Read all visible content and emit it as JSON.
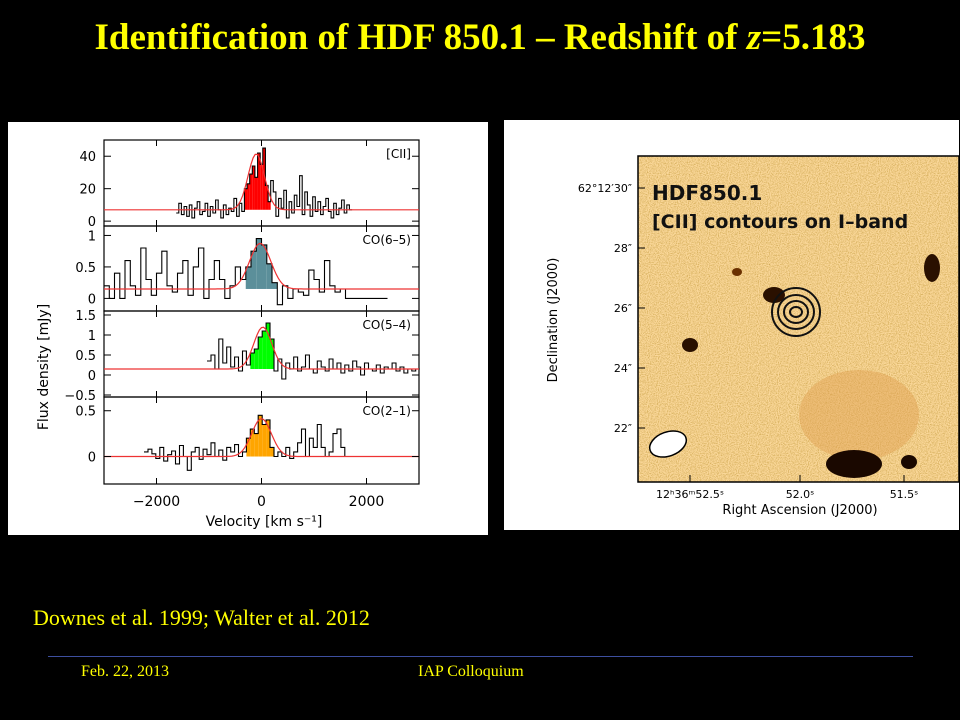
{
  "slide": {
    "title_prefix": "Identification of  HDF 850.1 – Redshift of ",
    "title_z": "z",
    "title_suffix": "=5.183",
    "citation": "Downes et al. 1999; Walter et al. 2012",
    "footer_date": "Feb. 22, 2013",
    "footer_event": "IAP Colloquium"
  },
  "chart_data": [
    {
      "type": "line",
      "xlabel": "Velocity [km s⁻¹]",
      "ylabel": "Flux density [mJy]",
      "xlim": [
        -3000,
        3000
      ],
      "x_ticks": [
        -2000,
        0,
        2000
      ],
      "x_tick_labels": [
        "−2000",
        "0",
        "2000"
      ],
      "panels": [
        {
          "name": "[CII]",
          "ylim": [
            -3,
            50
          ],
          "y_ticks": [
            0,
            20,
            40
          ],
          "y_tick_labels": [
            "0",
            "20",
            "40"
          ],
          "baseline": 7,
          "fill_color": "#ff0000",
          "fill_range": [
            -350,
            150
          ],
          "x": [
            -1600,
            -1550,
            -1500,
            -1450,
            -1400,
            -1350,
            -1300,
            -1250,
            -1200,
            -1150,
            -1100,
            -1050,
            -1000,
            -950,
            -900,
            -850,
            -800,
            -750,
            -700,
            -650,
            -600,
            -550,
            -500,
            -450,
            -400,
            -350,
            -300,
            -250,
            -200,
            -150,
            -100,
            -50,
            0,
            50,
            100,
            150,
            200,
            250,
            300,
            350,
            400,
            450,
            500,
            550,
            600,
            650,
            700,
            750,
            800,
            850,
            900,
            950,
            1000,
            1050,
            1100,
            1150,
            1200,
            1250,
            1300,
            1350,
            1400,
            1450,
            1500,
            1550,
            1600,
            1650,
            1700
          ],
          "values": [
            5,
            11,
            4,
            9,
            3,
            10,
            2,
            8,
            12,
            4,
            6,
            11,
            3,
            9,
            5,
            13,
            7,
            2,
            10,
            4,
            8,
            6,
            14,
            3,
            11,
            6,
            20,
            23,
            29,
            34,
            27,
            42,
            35,
            45,
            22,
            12,
            25,
            18,
            3,
            14,
            8,
            19,
            2,
            12,
            5,
            16,
            9,
            28,
            4,
            18,
            10,
            3,
            15,
            6,
            12,
            4,
            9,
            14,
            6,
            2,
            11,
            4,
            8,
            13,
            5,
            10,
            7
          ]
        },
        {
          "name": "CO(6–5)",
          "ylim": [
            -0.2,
            1.15
          ],
          "y_ticks": [
            0,
            0.5,
            1
          ],
          "y_tick_labels": [
            "0",
            "0.5",
            "1"
          ],
          "baseline": 0.15,
          "fill_color": "#5b8f9a",
          "fill_range": [
            -350,
            300
          ],
          "x": [
            -2950,
            -2850,
            -2750,
            -2650,
            -2550,
            -2450,
            -2350,
            -2250,
            -2150,
            -2050,
            -1950,
            -1850,
            -1750,
            -1650,
            -1550,
            -1450,
            -1350,
            -1250,
            -1150,
            -1050,
            -950,
            -850,
            -750,
            -650,
            -550,
            -450,
            -350,
            -250,
            -150,
            -50,
            50,
            150,
            250,
            350,
            450,
            550,
            650,
            750,
            850,
            950,
            1050,
            1150,
            1250,
            1350,
            1450,
            1550,
            1650,
            1750,
            1850,
            1950,
            2050,
            2150,
            2250,
            2350
          ],
          "values": [
            0.2,
            0.0,
            0.4,
            0.0,
            0.6,
            0.2,
            0.05,
            0.8,
            0.3,
            0.05,
            0.4,
            0.75,
            0.2,
            0.1,
            0.4,
            0.6,
            0.05,
            0.5,
            0.8,
            0.0,
            0.3,
            0.6,
            0.3,
            0.0,
            0.2,
            0.5,
            0.3,
            0.5,
            0.75,
            0.95,
            0.85,
            0.55,
            0.25,
            -0.1,
            0.2,
            0.0,
            0.15,
            0.1,
            0.05,
            0.45,
            0.3,
            0.1,
            0.6,
            0.2,
            0.1,
            0.15,
            0.0,
            0.0,
            0.0,
            0.0,
            0.0,
            0.0,
            0.0,
            0.0
          ]
        },
        {
          "name": "CO(5–4)",
          "ylim": [
            -0.55,
            1.6
          ],
          "y_ticks": [
            -0.5,
            0,
            0.5,
            1,
            1.5
          ],
          "y_tick_labels": [
            "−0.5",
            "0",
            "0.5",
            "1",
            "1.5"
          ],
          "baseline": 0.15,
          "fill_color": "#00ff00",
          "fill_range": [
            -250,
            300
          ],
          "x": [
            -1000,
            -925,
            -850,
            -775,
            -700,
            -625,
            -550,
            -475,
            -400,
            -325,
            -250,
            -175,
            -100,
            -25,
            50,
            125,
            200,
            275,
            350,
            425,
            500,
            575,
            650,
            725,
            800,
            875,
            950,
            1025,
            1100,
            1175,
            1250,
            1325,
            1400,
            1475,
            1550,
            1625,
            1700,
            1775,
            1850,
            1925,
            2000,
            2075,
            2150,
            2225,
            2300,
            2375,
            2450,
            2525,
            2600,
            2675,
            2750,
            2825,
            2900,
            2975
          ],
          "values": [
            0.35,
            0.5,
            0.15,
            0.9,
            0.3,
            0.7,
            0.2,
            0.45,
            0.1,
            0.6,
            0.25,
            0.55,
            0.65,
            0.95,
            1.1,
            1.3,
            0.9,
            0.1,
            0.4,
            -0.1,
            0.3,
            0.15,
            0.45,
            0.1,
            0.2,
            0.5,
            0.15,
            0.05,
            0.35,
            0.2,
            0.1,
            0.4,
            0.15,
            0.3,
            0.05,
            0.25,
            0.1,
            0.35,
            0.2,
            0.0,
            0.3,
            0.15,
            0.1,
            0.25,
            0.05,
            0.2,
            0.15,
            0.3,
            0.1,
            0.2,
            0.05,
            0.15,
            0.1,
            0.15
          ]
        },
        {
          "name": "CO(2–1)",
          "ylim": [
            -0.3,
            0.65
          ],
          "y_ticks": [
            0,
            0.5
          ],
          "y_tick_labels": [
            "0",
            "0.5"
          ],
          "baseline": 0.0,
          "fill_color": "#ffa500",
          "fill_range": [
            -300,
            300
          ],
          "x": [
            -2200,
            -2125,
            -2050,
            -1975,
            -1900,
            -1825,
            -1750,
            -1675,
            -1600,
            -1525,
            -1450,
            -1375,
            -1300,
            -1225,
            -1150,
            -1075,
            -1000,
            -925,
            -850,
            -775,
            -700,
            -625,
            -550,
            -475,
            -400,
            -325,
            -250,
            -175,
            -100,
            -25,
            50,
            125,
            200,
            275,
            350,
            425,
            500,
            575,
            650,
            725,
            800,
            875,
            950,
            1025,
            1100,
            1175,
            1250,
            1325,
            1400,
            1475,
            1550,
            1625
          ],
          "values": [
            0.05,
            0.08,
            0.03,
            -0.02,
            0.1,
            -0.05,
            0.02,
            0.06,
            -0.08,
            0.12,
            0.0,
            -0.15,
            0.05,
            0.1,
            -0.03,
            0.08,
            0.02,
            0.15,
            0.0,
            0.07,
            -0.04,
            0.1,
            0.05,
            0.13,
            0.0,
            0.05,
            0.2,
            0.3,
            0.25,
            0.45,
            0.35,
            0.4,
            0.1,
            0.0,
            0.05,
            0.0,
            0.1,
            -0.02,
            0.05,
            0.15,
            0.3,
            0.0,
            0.2,
            0.1,
            0.35,
            0.1,
            0.0,
            0.05,
            0.25,
            0.3,
            0.1,
            0.0
          ]
        }
      ]
    },
    {
      "type": "image",
      "title": "HDF850.1",
      "subtitle": "[CII] contours on I–band",
      "xlabel": "Right Ascension (J2000)",
      "ylabel": "Declination (J2000)",
      "y_tick_labels": [
        "62°12′30″",
        "28″",
        "26″",
        "24″",
        "22″"
      ],
      "x_tick_labels": [
        "12ʰ36ᵐ52.5ˢ",
        "52.0ˢ",
        "51.5ˢ"
      ]
    }
  ]
}
